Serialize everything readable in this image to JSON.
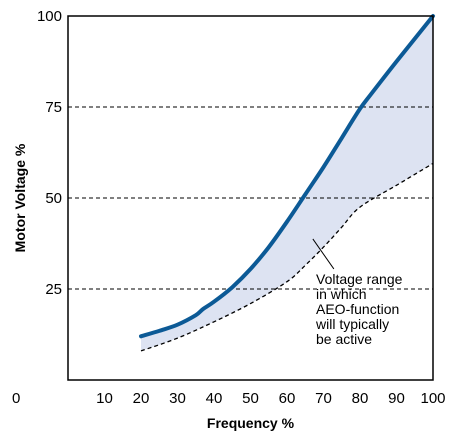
{
  "chart_data": {
    "type": "line",
    "title": "",
    "xlabel": "Frequency %",
    "ylabel": "Motor Voltage %",
    "xlim": [
      0,
      100
    ],
    "ylim": [
      0,
      100
    ],
    "x_ticks": [
      0,
      10,
      20,
      30,
      40,
      50,
      60,
      70,
      80,
      90,
      100
    ],
    "y_ticks": [
      25,
      50,
      75,
      100
    ],
    "y_tick_labels": [
      "25",
      "50",
      "75",
      "100"
    ],
    "x_tick_labels": [
      "0",
      "10",
      "20",
      "30",
      "40",
      "50",
      "60",
      "70",
      "80",
      "90",
      "100"
    ],
    "grid": {
      "horizontal_dashed_at": [
        25,
        50,
        75
      ]
    },
    "series": [
      {
        "style": "solid-thick",
        "color": "#0c5a96",
        "x": [
          20,
          25,
          30,
          35,
          37,
          40,
          45,
          50,
          55,
          60,
          65,
          70,
          75,
          80,
          83,
          90,
          100
        ],
        "y": [
          12,
          13.5,
          15.2,
          17.8,
          19.5,
          21.5,
          25.5,
          30.5,
          36.5,
          43.5,
          51,
          58.5,
          66.5,
          74.5,
          78.5,
          87.5,
          100
        ]
      },
      {
        "style": "dashed",
        "color": "#000000",
        "x": [
          20,
          30,
          40,
          50,
          60,
          65,
          70,
          75,
          80,
          90,
          100
        ],
        "y": [
          8,
          11.5,
          16,
          21,
          27,
          31.5,
          36.5,
          42,
          47.5,
          53.5,
          59.5
        ]
      }
    ],
    "fill_between": {
      "color": "#dde3f2"
    },
    "annotation": {
      "lines": [
        "Voltage range",
        "in which",
        "AEO-function",
        "will typically",
        "be active"
      ],
      "points_to": [
        69,
        36
      ]
    }
  }
}
